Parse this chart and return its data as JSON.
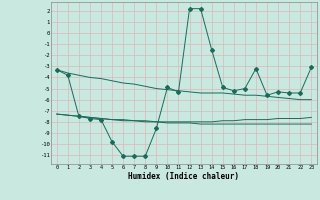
{
  "xlabel": "Humidex (Indice chaleur)",
  "bg_color": "#c8e8e0",
  "grid_color": "#d8b8b8",
  "line_color": "#1a6b5a",
  "ylim": [
    -11.8,
    2.8
  ],
  "xlim": [
    -0.5,
    23.5
  ],
  "curve1_x": [
    0,
    1,
    2,
    3,
    4,
    5,
    6,
    7,
    8,
    9,
    10,
    11,
    12,
    13,
    14,
    15,
    16,
    17,
    18,
    19,
    20,
    21,
    22,
    23
  ],
  "curve1_y": [
    -3.3,
    -3.6,
    -3.8,
    -4.0,
    -4.1,
    -4.3,
    -4.5,
    -4.6,
    -4.8,
    -5.0,
    -5.1,
    -5.2,
    -5.3,
    -5.4,
    -5.4,
    -5.4,
    -5.5,
    -5.6,
    -5.6,
    -5.7,
    -5.8,
    -5.9,
    -6.0,
    -6.0
  ],
  "curve2_x": [
    0,
    1,
    2,
    3,
    4,
    5,
    6,
    7,
    8,
    9,
    10,
    11,
    12,
    13,
    14,
    15,
    16,
    17,
    18,
    19,
    20,
    21,
    22,
    23
  ],
  "curve2_y": [
    -7.3,
    -7.4,
    -7.5,
    -7.6,
    -7.7,
    -7.8,
    -7.9,
    -7.9,
    -8.0,
    -8.0,
    -8.1,
    -8.1,
    -8.1,
    -8.2,
    -8.2,
    -8.2,
    -8.2,
    -8.2,
    -8.2,
    -8.2,
    -8.2,
    -8.2,
    -8.2,
    -8.2
  ],
  "curve3_x": [
    0,
    1,
    2,
    3,
    4,
    5,
    6,
    7,
    8,
    9,
    10,
    11,
    12,
    13,
    14,
    15,
    16,
    17,
    18,
    19,
    20,
    21,
    22,
    23
  ],
  "curve3_y": [
    -7.3,
    -7.4,
    -7.5,
    -7.6,
    -7.7,
    -7.8,
    -7.8,
    -7.9,
    -7.9,
    -8.0,
    -8.0,
    -8.0,
    -8.0,
    -8.0,
    -8.0,
    -7.9,
    -7.9,
    -7.8,
    -7.8,
    -7.8,
    -7.7,
    -7.7,
    -7.7,
    -7.6
  ],
  "main_x": [
    0,
    1,
    2,
    3,
    4,
    5,
    6,
    7,
    8,
    9,
    10,
    11,
    12,
    13,
    14,
    15,
    16,
    17,
    18,
    19,
    20,
    21,
    22,
    23
  ],
  "main_y": [
    -3.3,
    -3.8,
    -7.5,
    -7.7,
    -7.8,
    -9.8,
    -11.1,
    -11.1,
    -11.1,
    -8.6,
    -4.9,
    -5.3,
    2.2,
    2.2,
    -1.5,
    -4.9,
    -5.2,
    -5.0,
    -3.2,
    -5.6,
    -5.3,
    -5.4,
    -5.4,
    -3.1
  ]
}
